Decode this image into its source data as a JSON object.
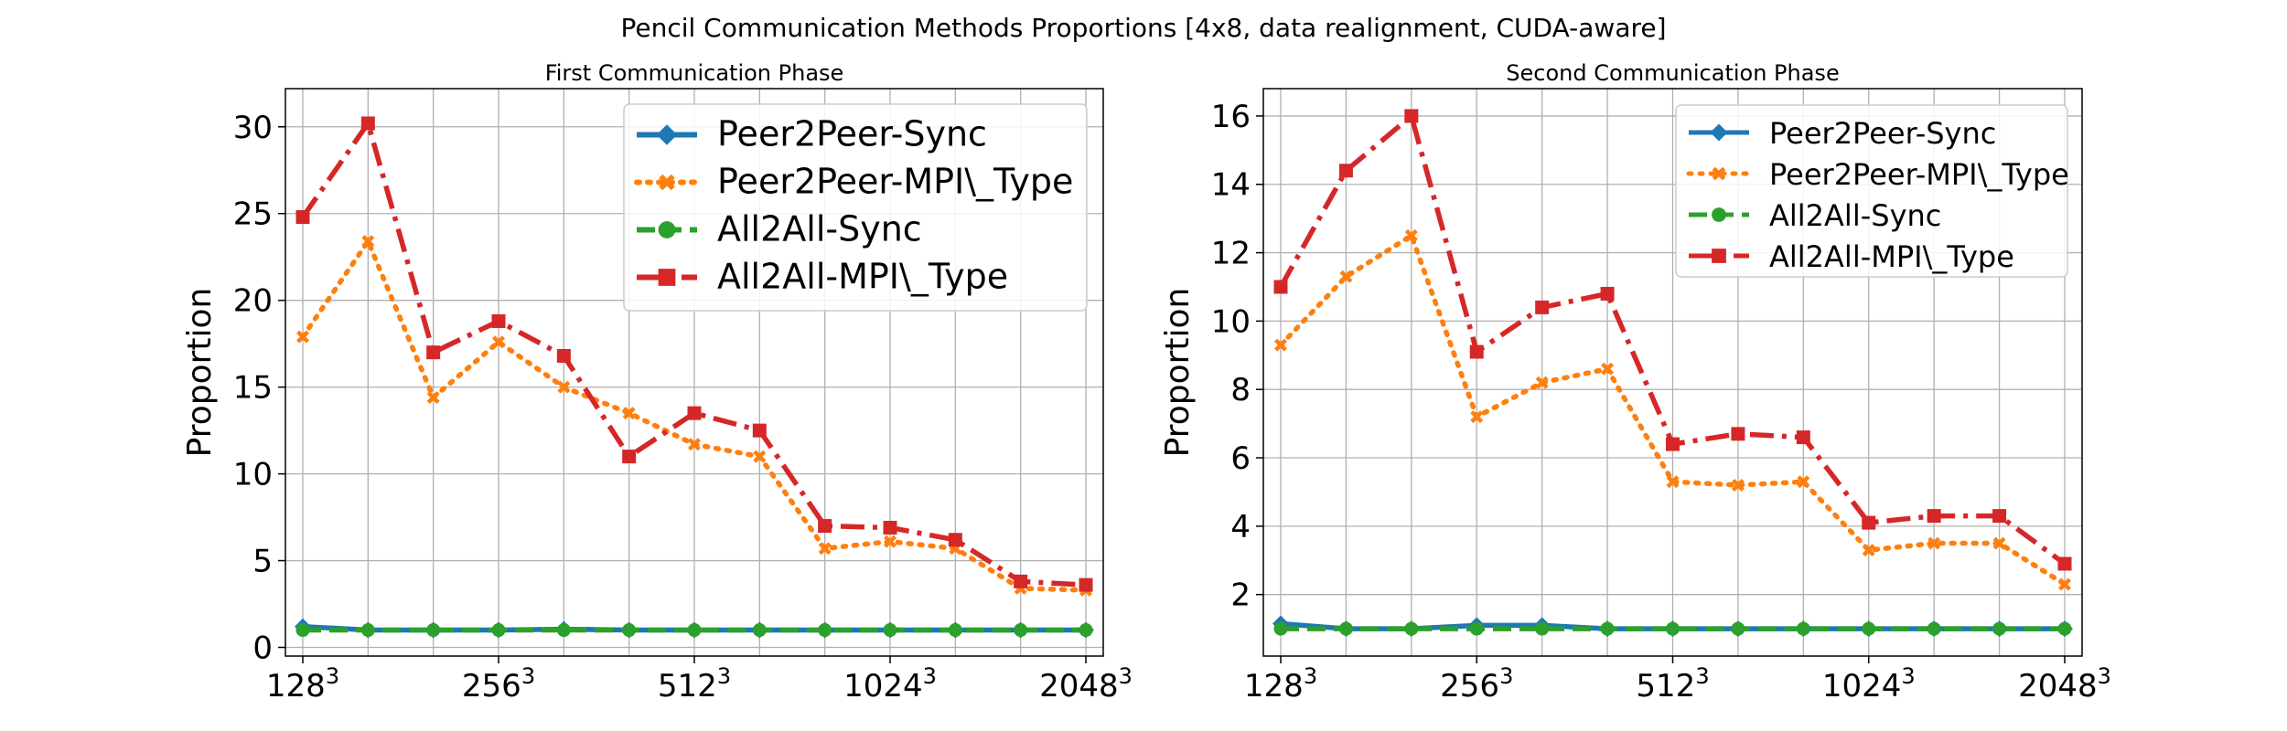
{
  "chart_data": {
    "type": "line",
    "title": "Pencil Communication Methods Proportions [4x8, data realignment, CUDA-aware]",
    "x_ticks": [
      {
        "base": "128",
        "exp": "3",
        "index": 0
      },
      {
        "base": "256",
        "exp": "3",
        "index": 3
      },
      {
        "base": "512",
        "exp": "3",
        "index": 6
      },
      {
        "base": "1024",
        "exp": "3",
        "index": 9
      },
      {
        "base": "2048",
        "exp": "3",
        "index": 12
      }
    ],
    "panels": [
      {
        "title": "First Communication Phase",
        "ylabel": "Proportion",
        "ylim": [
          -0.5,
          32.2
        ],
        "yticks": [
          0,
          5,
          10,
          15,
          20,
          25,
          30
        ],
        "grid": true,
        "legend_position": "top-right",
        "series": [
          {
            "name": "Peer2Peer-Sync",
            "color": "#1f77b4",
            "marker": "diamond",
            "dash": "solid",
            "values": [
              1.2,
              1.0,
              1.0,
              1.0,
              1.05,
              1.0,
              1.0,
              1.0,
              1.0,
              1.0,
              1.0,
              1.0,
              1.0
            ]
          },
          {
            "name": "Peer2Peer-MPI\\_Type",
            "color": "#ff7f0e",
            "marker": "x",
            "dash": "dotted",
            "values": [
              17.9,
              23.4,
              14.4,
              17.6,
              15.0,
              13.5,
              11.7,
              11.0,
              5.7,
              6.1,
              5.7,
              3.4,
              3.3
            ]
          },
          {
            "name": "All2All-Sync",
            "color": "#2ca02c",
            "marker": "circle",
            "dash": "dashed",
            "values": [
              1.0,
              1.0,
              1.0,
              1.0,
              1.0,
              1.0,
              1.0,
              1.0,
              1.0,
              1.0,
              1.0,
              1.0,
              1.0
            ]
          },
          {
            "name": "All2All-MPI\\_Type",
            "color": "#d62728",
            "marker": "square",
            "dash": "dashdot",
            "values": [
              24.8,
              30.2,
              17.0,
              18.8,
              16.8,
              11.0,
              13.5,
              12.5,
              7.0,
              6.9,
              6.2,
              3.8,
              3.6
            ]
          }
        ]
      },
      {
        "title": "Second Communication Phase",
        "ylabel": "Proportion",
        "ylim": [
          0.2,
          16.8
        ],
        "yticks": [
          2,
          4,
          6,
          8,
          10,
          12,
          14,
          16
        ],
        "grid": true,
        "legend_position": "top-right",
        "series": [
          {
            "name": "Peer2Peer-Sync",
            "color": "#1f77b4",
            "marker": "diamond",
            "dash": "solid",
            "values": [
              1.15,
              1.0,
              1.0,
              1.1,
              1.1,
              1.0,
              1.0,
              1.0,
              1.0,
              1.0,
              1.0,
              1.0,
              1.0
            ]
          },
          {
            "name": "Peer2Peer-MPI\\_Type",
            "color": "#ff7f0e",
            "marker": "x",
            "dash": "dotted",
            "values": [
              9.3,
              11.3,
              12.5,
              7.2,
              8.2,
              8.6,
              5.3,
              5.2,
              5.3,
              3.3,
              3.5,
              3.5,
              2.3
            ]
          },
          {
            "name": "All2All-Sync",
            "color": "#2ca02c",
            "marker": "circle",
            "dash": "dashed",
            "values": [
              1.0,
              1.0,
              1.0,
              1.0,
              1.0,
              1.0,
              1.0,
              1.0,
              1.0,
              1.0,
              1.0,
              1.0,
              1.0
            ]
          },
          {
            "name": "All2All-MPI\\_Type",
            "color": "#d62728",
            "marker": "square",
            "dash": "dashdot",
            "values": [
              11.0,
              14.4,
              16.0,
              9.1,
              10.4,
              10.8,
              6.4,
              6.7,
              6.6,
              4.1,
              4.3,
              4.3,
              2.9
            ]
          }
        ]
      }
    ]
  }
}
